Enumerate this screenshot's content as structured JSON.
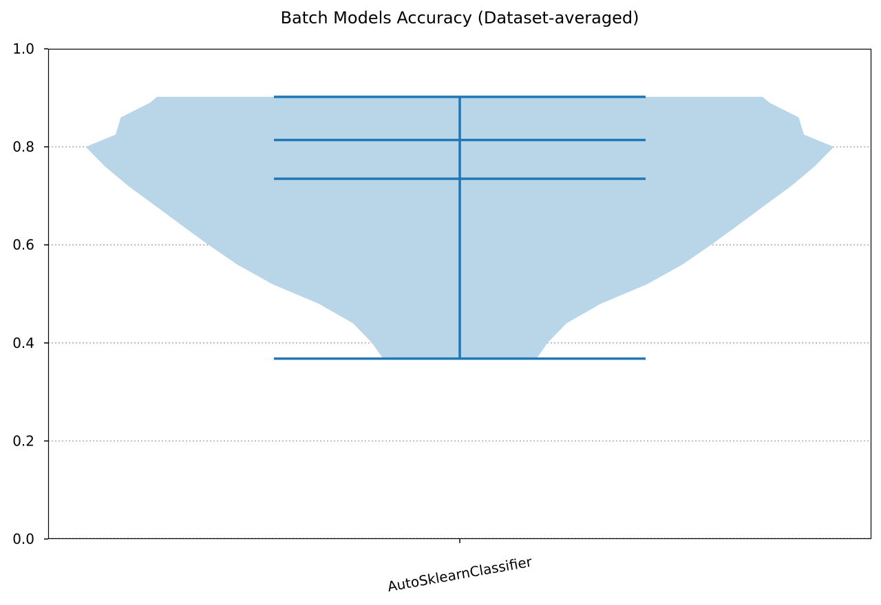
{
  "chart_data": {
    "type": "violin",
    "title": "Batch Models Accuracy (Dataset-averaged)",
    "xlabel": "",
    "ylabel": "",
    "ylim": [
      0.0,
      1.0
    ],
    "yticks": [
      0.0,
      0.2,
      0.4,
      0.6,
      0.8,
      1.0
    ],
    "ytick_labels": [
      "0.0",
      "0.2",
      "0.4",
      "0.6",
      "0.8",
      "1.0"
    ],
    "grid": "horizontal dotted",
    "categories": [
      "AutoSklearnClassifier"
    ],
    "series": [
      {
        "category": "AutoSklearnClassifier",
        "min": 0.368,
        "q1": 0.735,
        "median": 0.814,
        "max": 0.902,
        "density": [
          {
            "y": 0.368,
            "w": 0.223
          },
          {
            "y": 0.4,
            "w": 0.255
          },
          {
            "y": 0.44,
            "w": 0.31
          },
          {
            "y": 0.48,
            "w": 0.41
          },
          {
            "y": 0.52,
            "w": 0.545
          },
          {
            "y": 0.56,
            "w": 0.647
          },
          {
            "y": 0.6,
            "w": 0.73
          },
          {
            "y": 0.64,
            "w": 0.808
          },
          {
            "y": 0.68,
            "w": 0.885
          },
          {
            "y": 0.72,
            "w": 0.963
          },
          {
            "y": 0.76,
            "w": 1.031
          },
          {
            "y": 0.8,
            "w": 1.087
          },
          {
            "y": 0.825,
            "w": 1.0
          },
          {
            "y": 0.86,
            "w": 0.985
          },
          {
            "y": 0.89,
            "w": 0.9
          },
          {
            "y": 0.902,
            "w": 0.88
          }
        ]
      }
    ],
    "colors": {
      "body": "#b9d5e8",
      "lines": "#1f77b4",
      "grid": "#aaaaaa"
    }
  }
}
